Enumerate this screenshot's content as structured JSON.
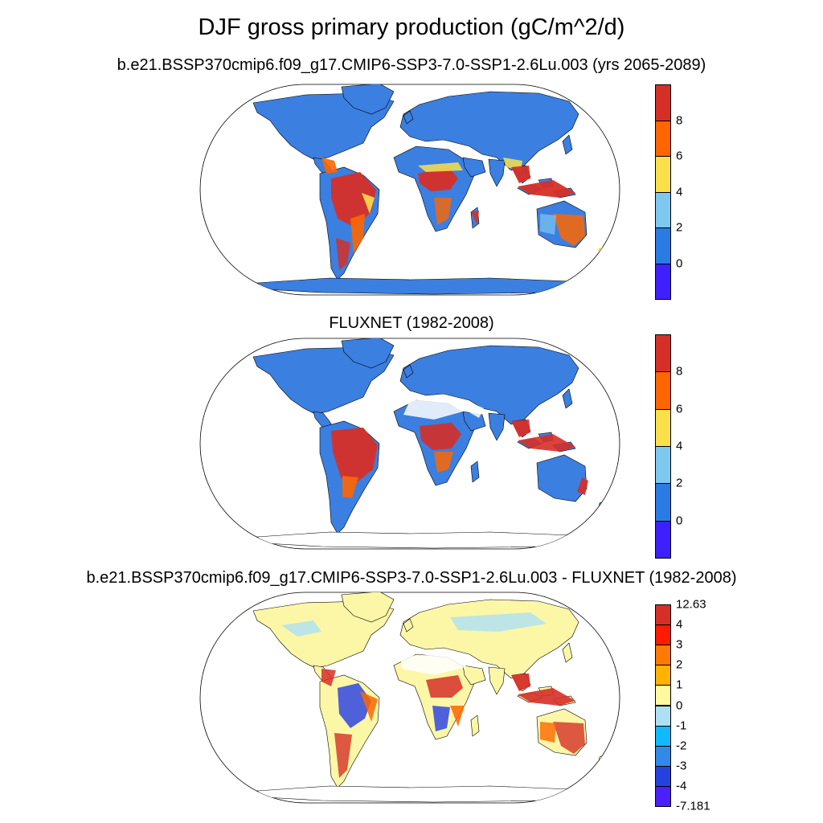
{
  "title": "DJF gross primary production (gC/m^2/d)",
  "panels": [
    {
      "subtitle": "b.e21.BSSP370cmip6.f09_g17.CMIP6-SSP3-7.0-SSP1-2.6Lu.003 (yrs 2065-2089)",
      "scheme": "abs",
      "map": "model"
    },
    {
      "subtitle": "FLUXNET (1982-2008)",
      "scheme": "abs",
      "map": "obs"
    },
    {
      "subtitle": "b.e21.BSSP370cmip6.f09_g17.CMIP6-SSP3-7.0-SSP1-2.6Lu.003 - FLUXNET (1982-2008)",
      "scheme": "diff",
      "map": "diff"
    }
  ],
  "colorbar_abs": {
    "colors": [
      "#d62f27",
      "#ff6600",
      "#f9e04b",
      "#7ec8f0",
      "#2b7be4",
      "#3d1fff"
    ],
    "labels": [
      "8",
      "6",
      "4",
      "2",
      "0"
    ]
  },
  "colorbar_diff": {
    "colors": [
      "#d62f27",
      "#ff1a00",
      "#ff7a00",
      "#ffb300",
      "#fffaa0",
      "#aee0f5",
      "#11baff",
      "#2f8ae8",
      "#2542e0",
      "#4b1fff"
    ],
    "labels": [
      "12.63",
      "4",
      "3",
      "2",
      "1",
      "0",
      "-1",
      "-2",
      "-3",
      "-4",
      "-7.181"
    ]
  },
  "colors": {
    "land_base_abs": "#3b7fe0",
    "land_base_diff": "#fbf7a6",
    "ocean": "#ffffff",
    "outline": "#000000",
    "hot": "#d62f27",
    "orange": "#ff6600",
    "yellow": "#f9e04b",
    "lightblue": "#7ec8f0",
    "diff_blue": "#2f46e0",
    "diff_cyan": "#aee0f5"
  }
}
